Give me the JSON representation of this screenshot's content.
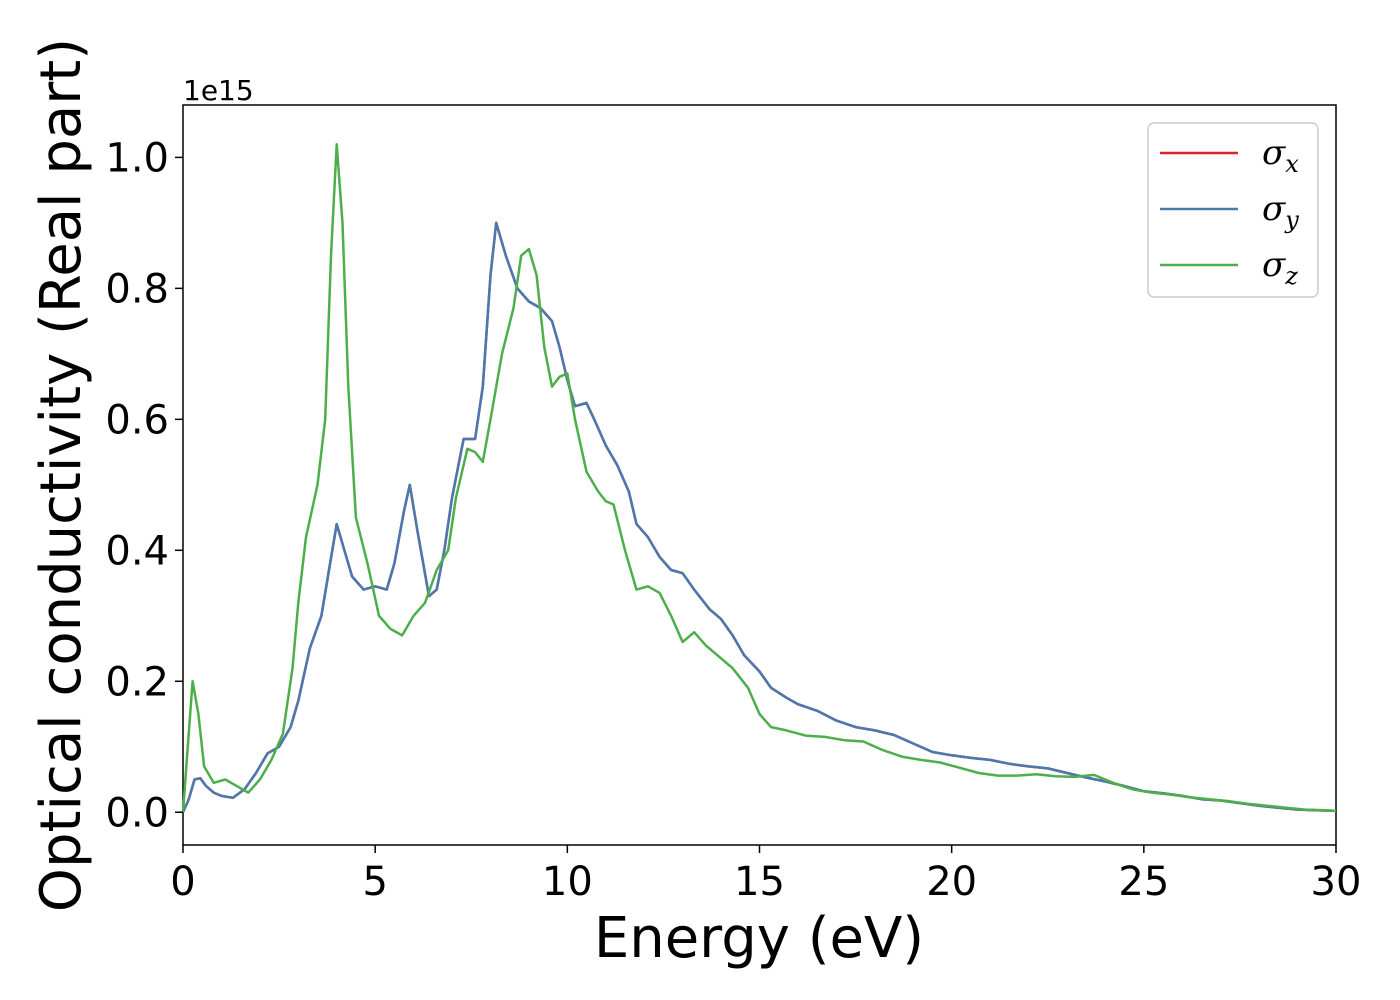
{
  "chart_data": {
    "type": "line",
    "xlabel": "Energy (eV)",
    "ylabel": "Optical conductivity (Real part)",
    "y_offset_text": "1e15",
    "xlim": [
      0,
      30
    ],
    "ylim": [
      -0.05,
      1.08
    ],
    "y_scale_factor": "1e15",
    "grid": false,
    "legend_position": "top-right",
    "x_ticks": [
      0,
      5,
      10,
      15,
      20,
      25,
      30
    ],
    "x_tick_labels": [
      "0",
      "5",
      "10",
      "15",
      "20",
      "25",
      "30"
    ],
    "y_ticks": [
      0.0,
      0.2,
      0.4,
      0.6,
      0.8,
      1.0
    ],
    "y_tick_labels": [
      "0.0",
      "0.2",
      "0.4",
      "0.6",
      "0.8",
      "1.0"
    ],
    "series": [
      {
        "name": "σx",
        "legend_main": "σ",
        "legend_sub": "x",
        "color": "#d62728",
        "points": [
          [
            0,
            0
          ],
          [
            0.15,
            0.02
          ],
          [
            0.3,
            0.05
          ],
          [
            0.45,
            0.052
          ],
          [
            0.6,
            0.04
          ],
          [
            0.8,
            0.03
          ],
          [
            1.0,
            0.025
          ],
          [
            1.3,
            0.022
          ],
          [
            1.6,
            0.035
          ],
          [
            1.9,
            0.06
          ],
          [
            2.2,
            0.09
          ],
          [
            2.5,
            0.1
          ],
          [
            2.8,
            0.13
          ],
          [
            3.0,
            0.17
          ],
          [
            3.3,
            0.25
          ],
          [
            3.6,
            0.3
          ],
          [
            3.8,
            0.37
          ],
          [
            4.0,
            0.44
          ],
          [
            4.2,
            0.4
          ],
          [
            4.4,
            0.36
          ],
          [
            4.7,
            0.34
          ],
          [
            5.0,
            0.345
          ],
          [
            5.3,
            0.34
          ],
          [
            5.5,
            0.38
          ],
          [
            5.75,
            0.46
          ],
          [
            5.9,
            0.5
          ],
          [
            6.1,
            0.43
          ],
          [
            6.4,
            0.33
          ],
          [
            6.6,
            0.34
          ],
          [
            6.8,
            0.4
          ],
          [
            7.0,
            0.48
          ],
          [
            7.3,
            0.57
          ],
          [
            7.6,
            0.57
          ],
          [
            7.8,
            0.65
          ],
          [
            8.0,
            0.82
          ],
          [
            8.15,
            0.9
          ],
          [
            8.4,
            0.85
          ],
          [
            8.7,
            0.8
          ],
          [
            9.0,
            0.78
          ],
          [
            9.3,
            0.77
          ],
          [
            9.6,
            0.75
          ],
          [
            9.8,
            0.71
          ],
          [
            10.0,
            0.66
          ],
          [
            10.2,
            0.62
          ],
          [
            10.5,
            0.625
          ],
          [
            10.7,
            0.6
          ],
          [
            11.0,
            0.56
          ],
          [
            11.3,
            0.53
          ],
          [
            11.6,
            0.49
          ],
          [
            11.8,
            0.44
          ],
          [
            12.1,
            0.42
          ],
          [
            12.4,
            0.39
          ],
          [
            12.7,
            0.37
          ],
          [
            13.0,
            0.365
          ],
          [
            13.3,
            0.34
          ],
          [
            13.7,
            0.31
          ],
          [
            14.0,
            0.295
          ],
          [
            14.3,
            0.27
          ],
          [
            14.6,
            0.24
          ],
          [
            15.0,
            0.215
          ],
          [
            15.3,
            0.19
          ],
          [
            15.7,
            0.175
          ],
          [
            16.0,
            0.165
          ],
          [
            16.5,
            0.155
          ],
          [
            17.0,
            0.14
          ],
          [
            17.5,
            0.13
          ],
          [
            18.0,
            0.125
          ],
          [
            18.5,
            0.118
          ],
          [
            19.0,
            0.105
          ],
          [
            19.5,
            0.092
          ],
          [
            20.0,
            0.087
          ],
          [
            20.5,
            0.083
          ],
          [
            21.0,
            0.08
          ],
          [
            21.5,
            0.074
          ],
          [
            22.0,
            0.07
          ],
          [
            22.5,
            0.067
          ],
          [
            23.0,
            0.06
          ],
          [
            23.5,
            0.053
          ],
          [
            24.0,
            0.047
          ],
          [
            24.5,
            0.04
          ],
          [
            25.0,
            0.032
          ],
          [
            25.5,
            0.029
          ],
          [
            26.0,
            0.025
          ],
          [
            26.5,
            0.02
          ],
          [
            27.0,
            0.018
          ],
          [
            27.5,
            0.014
          ],
          [
            28.0,
            0.01
          ],
          [
            28.5,
            0.007
          ],
          [
            29.0,
            0.004
          ],
          [
            29.5,
            0.003
          ],
          [
            30.0,
            0.002
          ]
        ]
      },
      {
        "name": "σy",
        "legend_main": "σ",
        "legend_sub": "y",
        "color": "#4a79b0",
        "points": [
          [
            0,
            0
          ],
          [
            0.15,
            0.02
          ],
          [
            0.3,
            0.05
          ],
          [
            0.45,
            0.052
          ],
          [
            0.6,
            0.04
          ],
          [
            0.8,
            0.03
          ],
          [
            1.0,
            0.025
          ],
          [
            1.3,
            0.022
          ],
          [
            1.6,
            0.035
          ],
          [
            1.9,
            0.06
          ],
          [
            2.2,
            0.09
          ],
          [
            2.5,
            0.1
          ],
          [
            2.8,
            0.13
          ],
          [
            3.0,
            0.17
          ],
          [
            3.3,
            0.25
          ],
          [
            3.6,
            0.3
          ],
          [
            3.8,
            0.37
          ],
          [
            4.0,
            0.44
          ],
          [
            4.2,
            0.4
          ],
          [
            4.4,
            0.36
          ],
          [
            4.7,
            0.34
          ],
          [
            5.0,
            0.345
          ],
          [
            5.3,
            0.34
          ],
          [
            5.5,
            0.38
          ],
          [
            5.75,
            0.46
          ],
          [
            5.9,
            0.5
          ],
          [
            6.1,
            0.43
          ],
          [
            6.4,
            0.33
          ],
          [
            6.6,
            0.34
          ],
          [
            6.8,
            0.4
          ],
          [
            7.0,
            0.48
          ],
          [
            7.3,
            0.57
          ],
          [
            7.6,
            0.57
          ],
          [
            7.8,
            0.65
          ],
          [
            8.0,
            0.82
          ],
          [
            8.15,
            0.9
          ],
          [
            8.4,
            0.85
          ],
          [
            8.7,
            0.8
          ],
          [
            9.0,
            0.78
          ],
          [
            9.3,
            0.77
          ],
          [
            9.6,
            0.75
          ],
          [
            9.8,
            0.71
          ],
          [
            10.0,
            0.66
          ],
          [
            10.2,
            0.62
          ],
          [
            10.5,
            0.625
          ],
          [
            10.7,
            0.6
          ],
          [
            11.0,
            0.56
          ],
          [
            11.3,
            0.53
          ],
          [
            11.6,
            0.49
          ],
          [
            11.8,
            0.44
          ],
          [
            12.1,
            0.42
          ],
          [
            12.4,
            0.39
          ],
          [
            12.7,
            0.37
          ],
          [
            13.0,
            0.365
          ],
          [
            13.3,
            0.34
          ],
          [
            13.7,
            0.31
          ],
          [
            14.0,
            0.295
          ],
          [
            14.3,
            0.27
          ],
          [
            14.6,
            0.24
          ],
          [
            15.0,
            0.215
          ],
          [
            15.3,
            0.19
          ],
          [
            15.7,
            0.175
          ],
          [
            16.0,
            0.165
          ],
          [
            16.5,
            0.155
          ],
          [
            17.0,
            0.14
          ],
          [
            17.5,
            0.13
          ],
          [
            18.0,
            0.125
          ],
          [
            18.5,
            0.118
          ],
          [
            19.0,
            0.105
          ],
          [
            19.5,
            0.092
          ],
          [
            20.0,
            0.087
          ],
          [
            20.5,
            0.083
          ],
          [
            21.0,
            0.08
          ],
          [
            21.5,
            0.074
          ],
          [
            22.0,
            0.07
          ],
          [
            22.5,
            0.067
          ],
          [
            23.0,
            0.06
          ],
          [
            23.5,
            0.053
          ],
          [
            24.0,
            0.047
          ],
          [
            24.5,
            0.04
          ],
          [
            25.0,
            0.032
          ],
          [
            25.5,
            0.029
          ],
          [
            26.0,
            0.025
          ],
          [
            26.5,
            0.02
          ],
          [
            27.0,
            0.018
          ],
          [
            27.5,
            0.014
          ],
          [
            28.0,
            0.01
          ],
          [
            28.5,
            0.007
          ],
          [
            29.0,
            0.004
          ],
          [
            29.5,
            0.003
          ],
          [
            30.0,
            0.002
          ]
        ]
      },
      {
        "name": "σz",
        "legend_main": "σ",
        "legend_sub": "z",
        "color": "#4daf4a",
        "points": [
          [
            0,
            0
          ],
          [
            0.1,
            0.08
          ],
          [
            0.25,
            0.2
          ],
          [
            0.4,
            0.15
          ],
          [
            0.55,
            0.07
          ],
          [
            0.8,
            0.045
          ],
          [
            1.1,
            0.05
          ],
          [
            1.4,
            0.04
          ],
          [
            1.7,
            0.03
          ],
          [
            2.0,
            0.05
          ],
          [
            2.3,
            0.08
          ],
          [
            2.6,
            0.12
          ],
          [
            2.85,
            0.22
          ],
          [
            3.0,
            0.32
          ],
          [
            3.2,
            0.42
          ],
          [
            3.5,
            0.5
          ],
          [
            3.7,
            0.6
          ],
          [
            3.85,
            0.85
          ],
          [
            4.0,
            1.02
          ],
          [
            4.15,
            0.9
          ],
          [
            4.3,
            0.65
          ],
          [
            4.5,
            0.45
          ],
          [
            4.8,
            0.38
          ],
          [
            5.1,
            0.3
          ],
          [
            5.4,
            0.28
          ],
          [
            5.7,
            0.27
          ],
          [
            6.0,
            0.3
          ],
          [
            6.3,
            0.32
          ],
          [
            6.6,
            0.37
          ],
          [
            6.9,
            0.4
          ],
          [
            7.1,
            0.48
          ],
          [
            7.4,
            0.555
          ],
          [
            7.6,
            0.55
          ],
          [
            7.8,
            0.535
          ],
          [
            8.0,
            0.6
          ],
          [
            8.3,
            0.7
          ],
          [
            8.6,
            0.77
          ],
          [
            8.8,
            0.85
          ],
          [
            9.0,
            0.86
          ],
          [
            9.2,
            0.82
          ],
          [
            9.4,
            0.71
          ],
          [
            9.6,
            0.65
          ],
          [
            9.8,
            0.665
          ],
          [
            10.0,
            0.67
          ],
          [
            10.2,
            0.6
          ],
          [
            10.5,
            0.52
          ],
          [
            10.8,
            0.49
          ],
          [
            11.0,
            0.475
          ],
          [
            11.2,
            0.47
          ],
          [
            11.5,
            0.4
          ],
          [
            11.8,
            0.34
          ],
          [
            12.1,
            0.345
          ],
          [
            12.4,
            0.335
          ],
          [
            12.7,
            0.3
          ],
          [
            13.0,
            0.26
          ],
          [
            13.3,
            0.275
          ],
          [
            13.6,
            0.255
          ],
          [
            14.0,
            0.235
          ],
          [
            14.3,
            0.22
          ],
          [
            14.7,
            0.19
          ],
          [
            15.0,
            0.15
          ],
          [
            15.3,
            0.13
          ],
          [
            15.7,
            0.125
          ],
          [
            16.2,
            0.117
          ],
          [
            16.7,
            0.115
          ],
          [
            17.2,
            0.11
          ],
          [
            17.7,
            0.108
          ],
          [
            18.2,
            0.095
          ],
          [
            18.7,
            0.085
          ],
          [
            19.2,
            0.08
          ],
          [
            19.7,
            0.076
          ],
          [
            20.2,
            0.068
          ],
          [
            20.7,
            0.06
          ],
          [
            21.2,
            0.056
          ],
          [
            21.7,
            0.056
          ],
          [
            22.2,
            0.058
          ],
          [
            22.7,
            0.055
          ],
          [
            23.2,
            0.054
          ],
          [
            23.7,
            0.057
          ],
          [
            24.2,
            0.045
          ],
          [
            24.7,
            0.035
          ],
          [
            25.2,
            0.03
          ],
          [
            25.7,
            0.027
          ],
          [
            26.2,
            0.023
          ],
          [
            26.7,
            0.02
          ],
          [
            27.2,
            0.017
          ],
          [
            27.7,
            0.013
          ],
          [
            28.2,
            0.01
          ],
          [
            28.7,
            0.007
          ],
          [
            29.2,
            0.004
          ],
          [
            29.7,
            0.003
          ],
          [
            30.0,
            0.002
          ]
        ]
      }
    ]
  }
}
